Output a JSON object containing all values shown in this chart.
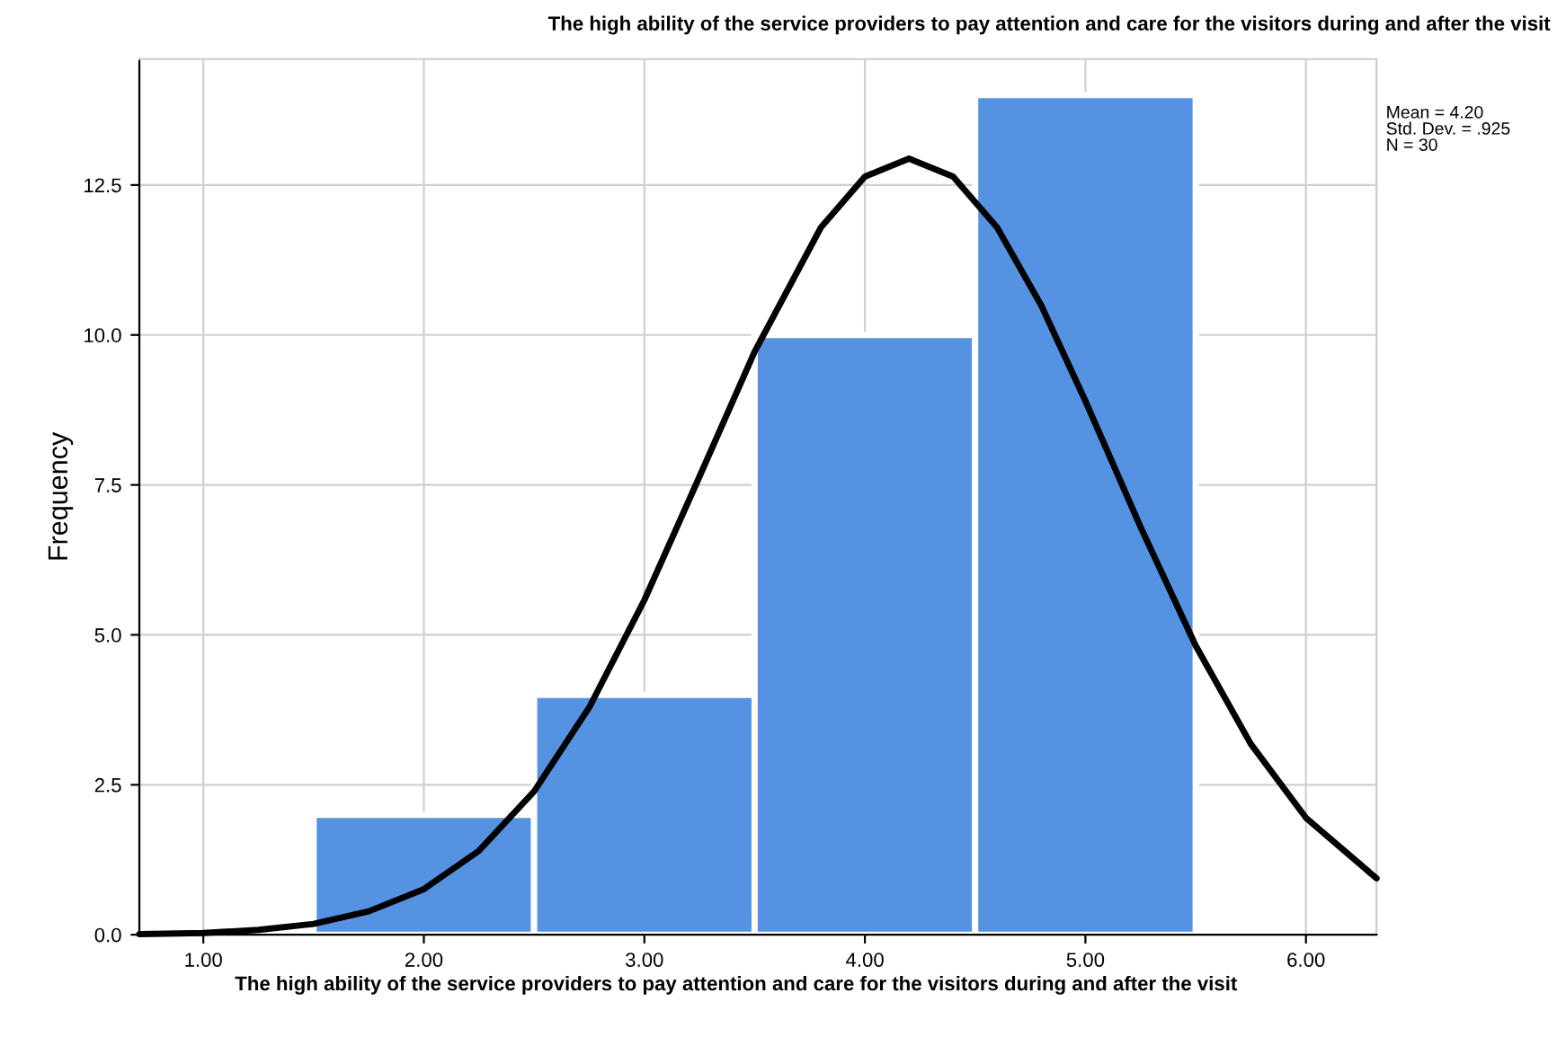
{
  "chart_data": {
    "type": "histogram",
    "title": "The high ability of the service providers to pay attention and care for the visitors during and after the visit",
    "xlabel": "The high ability of the service providers to pay attention and care for the visitors during and after the visit",
    "ylabel": "Frequency",
    "bins": [
      1.5,
      2.5,
      3.5,
      4.5,
      5.5
    ],
    "values": [
      2,
      4,
      10,
      14
    ],
    "color": "#5592e2",
    "series": [
      {
        "type": "line",
        "color": "#000000",
        "x": [
          0.71,
          1.0,
          1.25,
          1.5,
          1.75,
          2.0,
          2.25,
          2.5,
          2.75,
          3.0,
          3.25,
          3.5,
          3.8,
          4.0,
          4.2,
          4.4,
          4.6,
          4.8,
          5.0,
          5.25,
          5.5,
          5.75,
          6.0,
          6.32
        ],
        "values": [
          0.01,
          0.03,
          0.08,
          0.18,
          0.39,
          0.76,
          1.4,
          2.39,
          3.79,
          5.58,
          7.64,
          9.72,
          11.79,
          12.64,
          12.94,
          12.64,
          11.79,
          10.49,
          8.9,
          6.8,
          4.82,
          3.18,
          1.95,
          0.94
        ]
      }
    ],
    "xlim": [
      0.71,
      6.32
    ],
    "ylim": [
      0,
      14.6
    ],
    "xticks": [
      {
        "value": 1,
        "label": "1.00"
      },
      {
        "value": 2,
        "label": "2.00"
      },
      {
        "value": 3,
        "label": "3.00"
      },
      {
        "value": 4,
        "label": "4.00"
      },
      {
        "value": 5,
        "label": "5.00"
      },
      {
        "value": 6,
        "label": "6.00"
      }
    ],
    "yticks": [
      {
        "value": 0,
        "label": "0.0"
      },
      {
        "value": 2.5,
        "label": "2.5"
      },
      {
        "value": 5,
        "label": "5.0"
      },
      {
        "value": 7.5,
        "label": "7.5"
      },
      {
        "value": 10,
        "label": "10.0"
      },
      {
        "value": 12.5,
        "label": "12.5"
      }
    ],
    "grid": true,
    "annotations": [
      "Mean = 4.20\nStd. Dev. = .925\nN = 30"
    ]
  }
}
